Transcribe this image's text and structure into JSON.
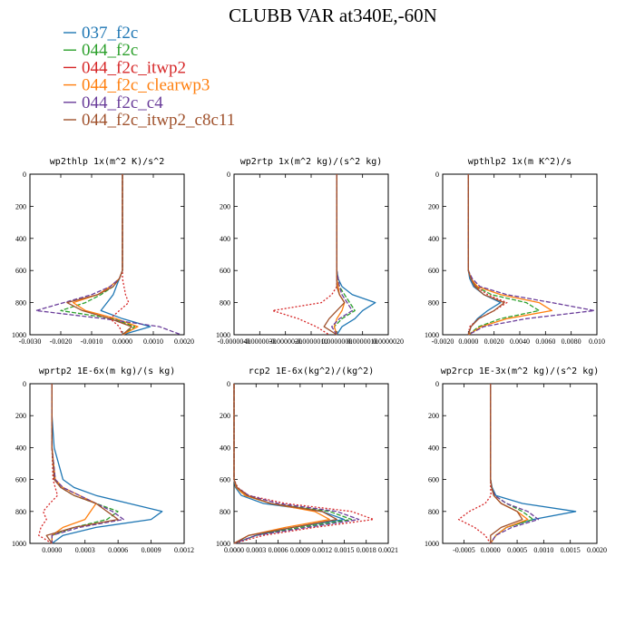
{
  "title": "CLUBB VAR at340E,-60N",
  "legend": [
    {
      "name": "037_f2c",
      "color": "#1f77b4",
      "dash": "solid"
    },
    {
      "name": "044_f2c",
      "color": "#2ca02c",
      "dash": "dashed"
    },
    {
      "name": "044_f2c_itwp2",
      "color": "#d62728",
      "dash": "dotted"
    },
    {
      "name": "044_f2c_clearwp3",
      "color": "#ff7f0e",
      "dash": "solid"
    },
    {
      "name": "044_f2c_c4",
      "color": "#6a3d9a",
      "dash": "dashed"
    },
    {
      "name": "044_f2c_itwp2_c8c11",
      "color": "#a0522d",
      "dash": "solid"
    }
  ],
  "chart_data": [
    {
      "type": "line",
      "title": "wp2thlp  1x(m^2 K)/s^2",
      "xlim": [
        -0.003,
        0.002
      ],
      "ylim": [
        1000,
        0
      ],
      "xticks": [
        -0.003,
        -0.002,
        -0.001,
        0.0,
        0.001,
        0.002
      ],
      "xtick_labels": [
        "-0.0030",
        "-0.0020",
        "-0.0010",
        "0.0000",
        "0.0010",
        "0.0020"
      ],
      "yticks": [
        0,
        200,
        400,
        600,
        800,
        1000
      ],
      "y": [
        0,
        200,
        400,
        600,
        650,
        700,
        750,
        800,
        850,
        900,
        950,
        1000
      ],
      "series": [
        {
          "name": "037_f2c",
          "values": [
            0.0,
            0.0,
            0.0,
            0.0,
            -0.0001,
            -0.0002,
            -0.0003,
            -0.0005,
            -0.0007,
            0.0,
            0.0009,
            0.0
          ]
        },
        {
          "name": "044_f2c",
          "values": [
            0.0,
            0.0,
            0.0,
            0.0,
            -0.0001,
            -0.0003,
            -0.0007,
            -0.0012,
            -0.002,
            -0.0003,
            0.0004,
            0.0
          ]
        },
        {
          "name": "044_f2c_itwp2",
          "values": [
            0.0,
            0.0,
            0.0,
            0.0,
            0.0,
            5e-05,
            0.0001,
            0.0002,
            -0.0001,
            -0.0004,
            -0.0001,
            0.0
          ]
        },
        {
          "name": "044_f2c_clearwp3",
          "values": [
            0.0,
            0.0,
            0.0,
            0.0,
            -0.0001,
            -0.0004,
            -0.0008,
            -0.0016,
            -0.0012,
            -0.0002,
            0.0005,
            0.0
          ]
        },
        {
          "name": "044_f2c_c4",
          "values": [
            0.0,
            0.0,
            0.0,
            0.0,
            -0.0001,
            -0.0004,
            -0.001,
            -0.0019,
            -0.0028,
            -0.0006,
            0.0012,
            0.0019
          ]
        },
        {
          "name": "044_f2c_itwp2_c8c11",
          "values": [
            0.0,
            0.0,
            0.0,
            0.0,
            -0.0001,
            -0.0003,
            -0.0008,
            -0.0018,
            -0.0013,
            -0.0004,
            0.0003,
            0.0
          ]
        }
      ]
    },
    {
      "type": "line",
      "title": "wp2rtp  1x(m^2 kg)/(s^2 kg)",
      "xlim": [
        -4e-06,
        2e-06
      ],
      "ylim": [
        1000,
        0
      ],
      "xticks": [
        -4e-06,
        -3e-06,
        -2e-06,
        -1e-06,
        0.0,
        1e-06,
        2e-06
      ],
      "xtick_labels": [
        "-0.0000040",
        "-0.0000030",
        "-0.0000020",
        "-0.0000010",
        "0.0000000",
        "0.0000010",
        "0.0000020"
      ],
      "yticks": [
        0,
        200,
        400,
        600,
        800,
        1000
      ],
      "y": [
        0,
        200,
        400,
        600,
        650,
        700,
        750,
        800,
        850,
        900,
        950,
        1000
      ],
      "series": [
        {
          "name": "037_f2c",
          "values": [
            0.0,
            0.0,
            0.0,
            0.0,
            5e-08,
            2e-07,
            6e-07,
            1.5e-06,
            1e-06,
            7e-07,
            2e-07,
            0.0
          ]
        },
        {
          "name": "044_f2c",
          "values": [
            0.0,
            0.0,
            0.0,
            0.0,
            5e-08,
            1e-07,
            3e-07,
            5e-07,
            7e-07,
            2e-07,
            -1e-07,
            0.0
          ]
        },
        {
          "name": "044_f2c_itwp2",
          "values": [
            0.0,
            0.0,
            0.0,
            0.0,
            0.0,
            0.0,
            -2e-07,
            -6e-07,
            -2.5e-06,
            -1.5e-06,
            -8e-07,
            -3e-07
          ]
        },
        {
          "name": "044_f2c_clearwp3",
          "values": [
            0.0,
            0.0,
            0.0,
            0.0,
            0.0,
            5e-08,
            1e-07,
            3e-07,
            2e-07,
            0.0,
            -1e-07,
            0.0
          ]
        },
        {
          "name": "044_f2c_c4",
          "values": [
            0.0,
            0.0,
            0.0,
            0.0,
            5e-08,
            1e-07,
            2e-07,
            4e-07,
            6e-07,
            1e-07,
            -2e-07,
            0.0
          ]
        },
        {
          "name": "044_f2c_itwp2_c8c11",
          "values": [
            0.0,
            0.0,
            0.0,
            0.0,
            0.0,
            0.0,
            1e-07,
            3e-07,
            0.0,
            -3e-07,
            -5e-07,
            0.0
          ]
        }
      ]
    },
    {
      "type": "line",
      "title": "wpthlp2  1x(m K^2)/s",
      "xlim": [
        -0.002,
        0.01
      ],
      "ylim": [
        1000,
        0
      ],
      "xticks": [
        -0.002,
        0.0,
        0.002,
        0.004,
        0.006,
        0.008,
        0.01
      ],
      "xtick_labels": [
        "-0.0020",
        "0.0000",
        "0.0020",
        "0.0040",
        "0.0060",
        "0.0080",
        "0.010"
      ],
      "yticks": [
        0,
        200,
        400,
        600,
        800,
        1000
      ],
      "y": [
        0,
        200,
        400,
        600,
        650,
        700,
        750,
        800,
        850,
        900,
        950,
        1000
      ],
      "series": [
        {
          "name": "037_f2c",
          "values": [
            0.0,
            0.0,
            0.0,
            0.0,
            0.0001,
            0.0004,
            0.0012,
            0.0025,
            0.0015,
            0.0007,
            0.0002,
            0.0
          ]
        },
        {
          "name": "044_f2c",
          "values": [
            0.0,
            0.0,
            0.0,
            0.0,
            0.0002,
            0.0006,
            0.0018,
            0.0045,
            0.0055,
            0.0025,
            0.0008,
            0.0
          ]
        },
        {
          "name": "044_f2c_itwp2",
          "values": [
            0.0,
            0.0,
            0.0,
            0.0,
            0.0002,
            0.0006,
            0.0015,
            0.003,
            0.002,
            0.0008,
            0.0001,
            0.0
          ]
        },
        {
          "name": "044_f2c_clearwp3",
          "values": [
            0.0,
            0.0,
            0.0,
            0.0,
            0.0002,
            0.0007,
            0.0025,
            0.0055,
            0.0065,
            0.003,
            0.001,
            0.0
          ]
        },
        {
          "name": "044_f2c_c4",
          "values": [
            0.0,
            0.0,
            0.0,
            0.0,
            0.0003,
            0.0009,
            0.003,
            0.0065,
            0.0098,
            0.0045,
            0.0012,
            0.0
          ]
        },
        {
          "name": "044_f2c_itwp2_c8c11",
          "values": [
            0.0,
            0.0,
            0.0,
            0.0,
            0.0002,
            0.0005,
            0.0012,
            0.0028,
            0.002,
            0.0008,
            0.0002,
            0.0
          ]
        }
      ]
    },
    {
      "type": "line",
      "title": "wprtp2  1E-6x(m kg)/(s kg)",
      "xlim": [
        -0.0002,
        0.0012
      ],
      "ylim": [
        1000,
        0
      ],
      "xticks": [
        0.0,
        0.0003,
        0.0006,
        0.0009,
        0.0012
      ],
      "xtick_labels": [
        "0.0000",
        "0.0003",
        "0.0006",
        "0.0009",
        "0.0012"
      ],
      "yticks": [
        0,
        200,
        400,
        600,
        800,
        1000
      ],
      "y": [
        0,
        200,
        400,
        600,
        650,
        700,
        750,
        800,
        850,
        900,
        950,
        1000
      ],
      "series": [
        {
          "name": "037_f2c",
          "values": [
            0.0,
            0.0,
            2e-05,
            0.0001,
            0.0002,
            0.0004,
            0.0007,
            0.001,
            0.0009,
            0.0004,
            0.0001,
            0.0
          ]
        },
        {
          "name": "044_f2c",
          "values": [
            0.0,
            0.0,
            0.0,
            3e-05,
            8e-05,
            0.0002,
            0.0004,
            0.0006,
            0.0005,
            0.0002,
            0.0,
            0.0
          ]
        },
        {
          "name": "044_f2c_itwp2",
          "values": [
            0.0,
            0.0,
            0.0,
            1e-05,
            3e-05,
            5e-05,
            -2e-05,
            -8e-05,
            -5e-05,
            -0.0001,
            -0.00012,
            0.0
          ]
        },
        {
          "name": "044_f2c_clearwp3",
          "values": [
            0.0,
            0.0,
            0.0,
            3e-05,
            0.0001,
            0.00025,
            0.0004,
            0.00035,
            0.0003,
            0.0001,
            0.0,
            0.0
          ]
        },
        {
          "name": "044_f2c_c4",
          "values": [
            0.0,
            0.0,
            0.0,
            3e-05,
            0.0001,
            0.00025,
            0.0004,
            0.00055,
            0.00065,
            0.00025,
            0.0,
            0.0
          ]
        },
        {
          "name": "044_f2c_itwp2_c8c11",
          "values": [
            0.0,
            0.0,
            0.0,
            2e-05,
            8e-05,
            0.0002,
            0.0004,
            0.0005,
            0.0006,
            0.0002,
            -5e-05,
            0.0
          ]
        }
      ]
    },
    {
      "type": "line",
      "title": "rcp2  1E-6x(kg^2)/(kg^2)",
      "xlim": [
        0.0,
        0.0021
      ],
      "ylim": [
        1000,
        0
      ],
      "xticks": [
        0.0,
        0.0003,
        0.0006,
        0.0009,
        0.0012,
        0.0015,
        0.0018,
        0.0021
      ],
      "xtick_labels": [
        "0.0000",
        "0.0003",
        "0.0006",
        "0.0009",
        "0.0012",
        "0.0015",
        "0.0018",
        "0.0021"
      ],
      "yticks": [
        0,
        200,
        400,
        600,
        800,
        1000
      ],
      "y": [
        0,
        200,
        400,
        600,
        650,
        700,
        750,
        800,
        850,
        900,
        950,
        1000
      ],
      "series": [
        {
          "name": "037_f2c",
          "values": [
            0.0,
            0.0,
            0.0,
            0.0,
            2e-05,
            0.0001,
            0.0004,
            0.0012,
            0.0015,
            0.0008,
            0.0003,
            0.0
          ]
        },
        {
          "name": "044_f2c",
          "values": [
            0.0,
            0.0,
            0.0,
            0.0,
            3e-05,
            0.00015,
            0.0005,
            0.0013,
            0.0016,
            0.0009,
            0.0003,
            0.0
          ]
        },
        {
          "name": "044_f2c_itwp2",
          "values": [
            0.0,
            0.0,
            0.0,
            0.0,
            5e-05,
            0.0002,
            0.0007,
            0.0016,
            0.0019,
            0.0011,
            0.0004,
            0.0
          ]
        },
        {
          "name": "044_f2c_clearwp3",
          "values": [
            0.0,
            0.0,
            0.0,
            0.0,
            3e-05,
            0.00015,
            0.0005,
            0.0011,
            0.0013,
            0.0007,
            0.0002,
            0.0
          ]
        },
        {
          "name": "044_f2c_c4",
          "values": [
            0.0,
            0.0,
            0.0,
            0.0,
            4e-05,
            0.0002,
            0.0006,
            0.0014,
            0.0017,
            0.001,
            0.0003,
            0.0
          ]
        },
        {
          "name": "044_f2c_itwp2_c8c11",
          "values": [
            0.0,
            0.0,
            0.0,
            0.0,
            4e-05,
            0.00018,
            0.0005,
            0.0012,
            0.0014,
            0.0008,
            0.0002,
            0.0
          ]
        }
      ]
    },
    {
      "type": "line",
      "title": "wp2rcp  1E-3x(m^2 kg)/(s^2 kg)",
      "xlim": [
        -0.0009,
        0.002
      ],
      "ylim": [
        1000,
        0
      ],
      "xticks": [
        -0.0005,
        0.0,
        0.0005,
        0.001,
        0.0015,
        0.002
      ],
      "xtick_labels": [
        "-0.0005",
        "0.0000",
        "0.0005",
        "0.0010",
        "0.0015",
        "0.0020"
      ],
      "yticks": [
        0,
        200,
        400,
        600,
        800,
        1000
      ],
      "y": [
        0,
        200,
        400,
        600,
        650,
        700,
        750,
        800,
        850,
        900,
        950,
        1000
      ],
      "series": [
        {
          "name": "037_f2c",
          "values": [
            0.0,
            0.0,
            0.0,
            0.0,
            3e-05,
            0.0001,
            0.0006,
            0.0016,
            0.0008,
            0.0003,
            0.0001,
            0.0
          ]
        },
        {
          "name": "044_f2c",
          "values": [
            0.0,
            0.0,
            0.0,
            0.0,
            2e-05,
            8e-05,
            0.0003,
            0.0006,
            0.0008,
            0.0003,
            0.0001,
            0.0
          ]
        },
        {
          "name": "044_f2c_itwp2",
          "values": [
            0.0,
            0.0,
            0.0,
            0.0,
            0.0,
            1e-05,
            -0.0001,
            -0.0004,
            -0.0006,
            -0.0003,
            -0.0001,
            0.0
          ]
        },
        {
          "name": "044_f2c_clearwp3",
          "values": [
            0.0,
            0.0,
            0.0,
            0.0,
            2e-05,
            6e-05,
            0.0002,
            0.0005,
            0.0007,
            0.0003,
            0.0001,
            0.0
          ]
        },
        {
          "name": "044_f2c_c4",
          "values": [
            0.0,
            0.0,
            0.0,
            0.0,
            2e-05,
            8e-05,
            0.0003,
            0.0007,
            0.0009,
            0.0004,
            0.0001,
            0.0
          ]
        },
        {
          "name": "044_f2c_itwp2_c8c11",
          "values": [
            0.0,
            0.0,
            0.0,
            0.0,
            2e-05,
            6e-05,
            0.0002,
            0.0005,
            0.0006,
            0.0002,
            0.0,
            0.0
          ]
        }
      ]
    }
  ]
}
